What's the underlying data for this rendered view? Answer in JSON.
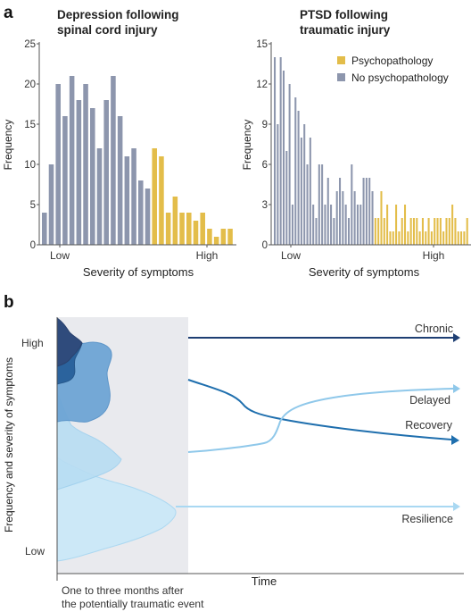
{
  "panels": {
    "a": "a",
    "b": "b"
  },
  "colors": {
    "psych": "#e3bd4a",
    "nopsych": "#8d96ad",
    "axis": "#555555",
    "chronic": "#1e3f73",
    "recovery": "#1f6fae",
    "delayed": "#8fc8ea",
    "resilience": "#a9d8f2",
    "shade": "#e9eaee"
  },
  "legend": {
    "psych": "Psychopathology",
    "nopsych": "No psychopathology"
  },
  "chart_data": [
    {
      "type": "bar",
      "title": "Depression following spinal cord injury",
      "title_lines": [
        "Depression following",
        "spinal cord injury"
      ],
      "ylabel": "Frequency",
      "xlabel": "Severity of symptoms",
      "x_ticks": [
        "Low",
        "High"
      ],
      "ylim": [
        0,
        25
      ],
      "yticks": [
        0,
        5,
        10,
        15,
        20,
        25
      ],
      "series": [
        {
          "name": "No psychopathology",
          "values": [
            4,
            10,
            20,
            16,
            21,
            18,
            20,
            17,
            12,
            18,
            21,
            16,
            11,
            12,
            8,
            7
          ]
        },
        {
          "name": "Psychopathology",
          "values": [
            12,
            11,
            4,
            6,
            4,
            4,
            3,
            4,
            2,
            1,
            2,
            2
          ]
        }
      ]
    },
    {
      "type": "bar",
      "title": "PTSD following traumatic injury",
      "title_lines": [
        "PTSD following",
        "traumatic injury"
      ],
      "ylabel": "Frequency",
      "xlabel": "Severity of symptoms",
      "x_ticks": [
        "Low",
        "High"
      ],
      "ylim": [
        0,
        15
      ],
      "yticks": [
        0,
        3,
        6,
        9,
        12,
        15
      ],
      "legend_position": "top-right",
      "series": [
        {
          "name": "No psychopathology",
          "values": [
            14,
            9,
            14,
            13,
            7,
            12,
            3,
            11,
            10,
            8,
            9,
            6,
            8,
            3,
            2,
            6,
            6,
            3,
            5,
            3,
            2,
            4,
            5,
            4,
            3,
            2,
            6,
            4,
            3,
            3,
            5,
            5,
            5,
            4
          ]
        },
        {
          "name": "Psychopathology",
          "values": [
            2,
            2,
            4,
            2,
            3,
            1,
            1,
            3,
            1,
            2,
            3,
            1,
            2,
            2,
            2,
            1,
            2,
            1,
            2,
            1,
            2,
            2,
            2,
            1,
            2,
            2,
            3,
            2,
            1,
            1,
            1,
            2
          ]
        }
      ]
    },
    {
      "type": "line",
      "ylabel": "Frequency and severity of symptoms",
      "xlabel": "Time",
      "y_ticks": [
        "High",
        "Low"
      ],
      "annotation": [
        "One to three months after",
        "the potentially traumatic event"
      ],
      "series": [
        {
          "name": "Chronic"
        },
        {
          "name": "Delayed"
        },
        {
          "name": "Recovery"
        },
        {
          "name": "Resilience"
        }
      ]
    }
  ]
}
